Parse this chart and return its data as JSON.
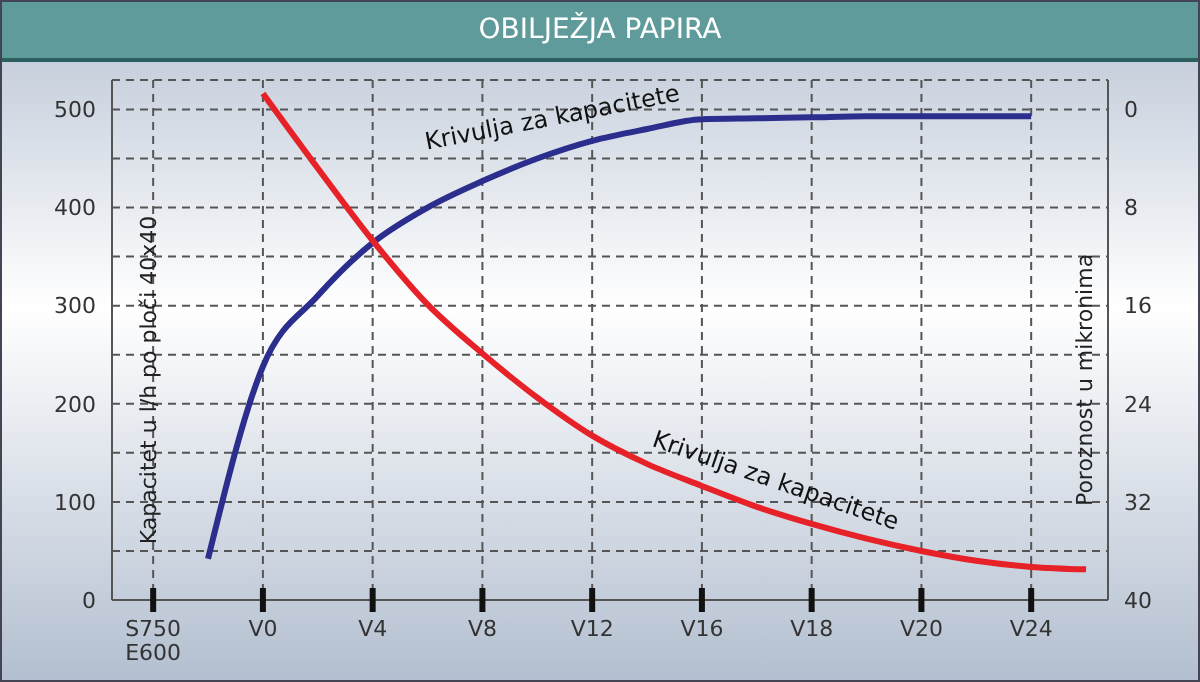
{
  "chart_data": {
    "type": "line",
    "title": "OBILJEŽJA PAPIRA",
    "ylabel": "Kapacitet u l/h po ploči 40x40",
    "y2label": "Poroznost u mikronima",
    "categories": [
      "S750\nE600",
      null,
      "V0",
      null,
      "V4",
      null,
      "V8",
      null,
      "V12",
      null,
      "V16",
      null,
      "V18",
      null,
      "V20",
      null,
      "V24",
      null
    ],
    "ylim": [
      0,
      530
    ],
    "yticks": [
      0,
      {
        "value": 50,
        "label": null
      },
      100,
      {
        "value": 150,
        "label": null
      },
      200,
      {
        "value": 250,
        "label": null
      },
      300,
      {
        "value": 350,
        "label": null
      },
      400,
      {
        "value": 450,
        "label": null
      },
      500
    ],
    "y2lim": [
      40,
      -2.4
    ],
    "y2ticks": [
      0,
      8,
      16,
      24,
      32,
      40
    ],
    "grid": true,
    "line_style": "solid",
    "marker": "none",
    "series": [
      {
        "color": "#2b2e8c",
        "values": [
          null,
          42,
          238,
          310,
          364,
          400,
          427,
          450,
          468,
          480,
          490,
          491,
          492,
          493,
          493,
          493,
          493,
          null
        ]
      },
      {
        "color": "#e62228",
        "axis": "y2",
        "values": [
          null,
          null,
          -1.3,
          4.8,
          10.7,
          15.9,
          19.9,
          23.5,
          26.6,
          28.9,
          30.7,
          32.4,
          33.8,
          35,
          36,
          36.8,
          37.3,
          37.5
        ]
      }
    ],
    "annotations": [
      "Krivulja za kapacitete",
      "Krivulja za kapacitete"
    ]
  }
}
